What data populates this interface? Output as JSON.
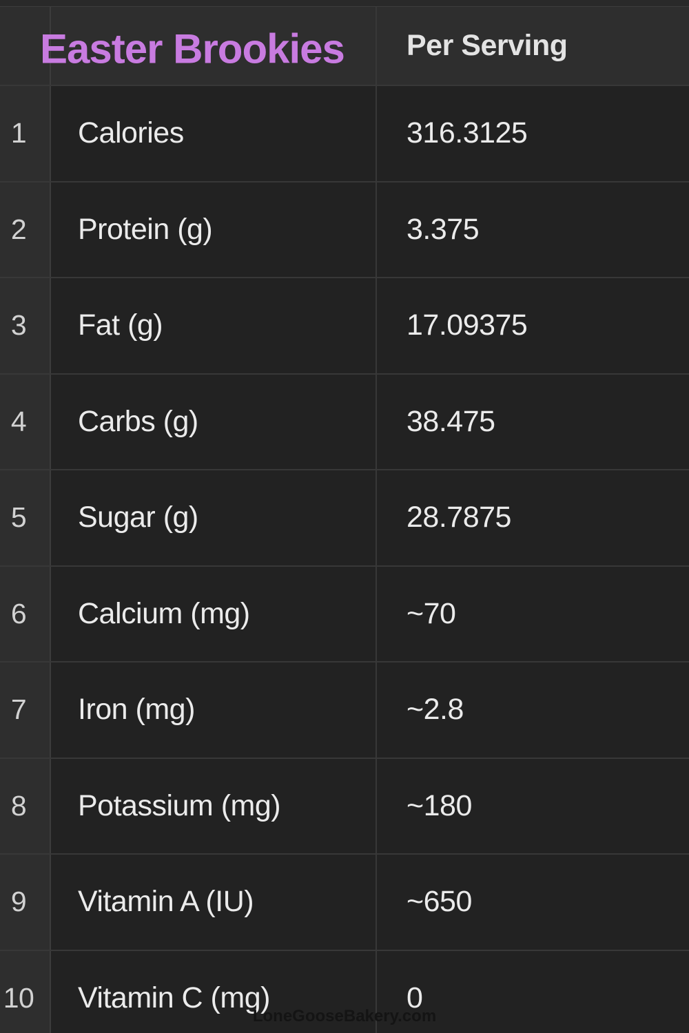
{
  "header": {
    "title": "Easter Brookies",
    "value_col": "Per Serving"
  },
  "rows": [
    {
      "num": "1",
      "label": "Calories",
      "value": "316.3125"
    },
    {
      "num": "2",
      "label": "Protein (g)",
      "value": "3.375"
    },
    {
      "num": "3",
      "label": "Fat (g)",
      "value": "17.09375"
    },
    {
      "num": "4",
      "label": "Carbs (g)",
      "value": "38.475"
    },
    {
      "num": "5",
      "label": "Sugar (g)",
      "value": "28.7875"
    },
    {
      "num": "6",
      "label": "Calcium (mg)",
      "value": "~70"
    },
    {
      "num": "7",
      "label": "Iron (mg)",
      "value": "~2.8"
    },
    {
      "num": "8",
      "label": "Potassium (mg)",
      "value": "~180"
    },
    {
      "num": "9",
      "label": "Vitamin A (IU)",
      "value": "~650"
    },
    {
      "num": "10",
      "label": "Vitamin C (mg)",
      "value": "0"
    }
  ],
  "watermark": "LoneGooseBakery.com",
  "colors": {
    "accent_purple": "#c87be0",
    "header_bg": "#2e2e2e",
    "cell_bg": "#222222",
    "grid_line": "#383838",
    "body_text": "#ebebeb"
  }
}
